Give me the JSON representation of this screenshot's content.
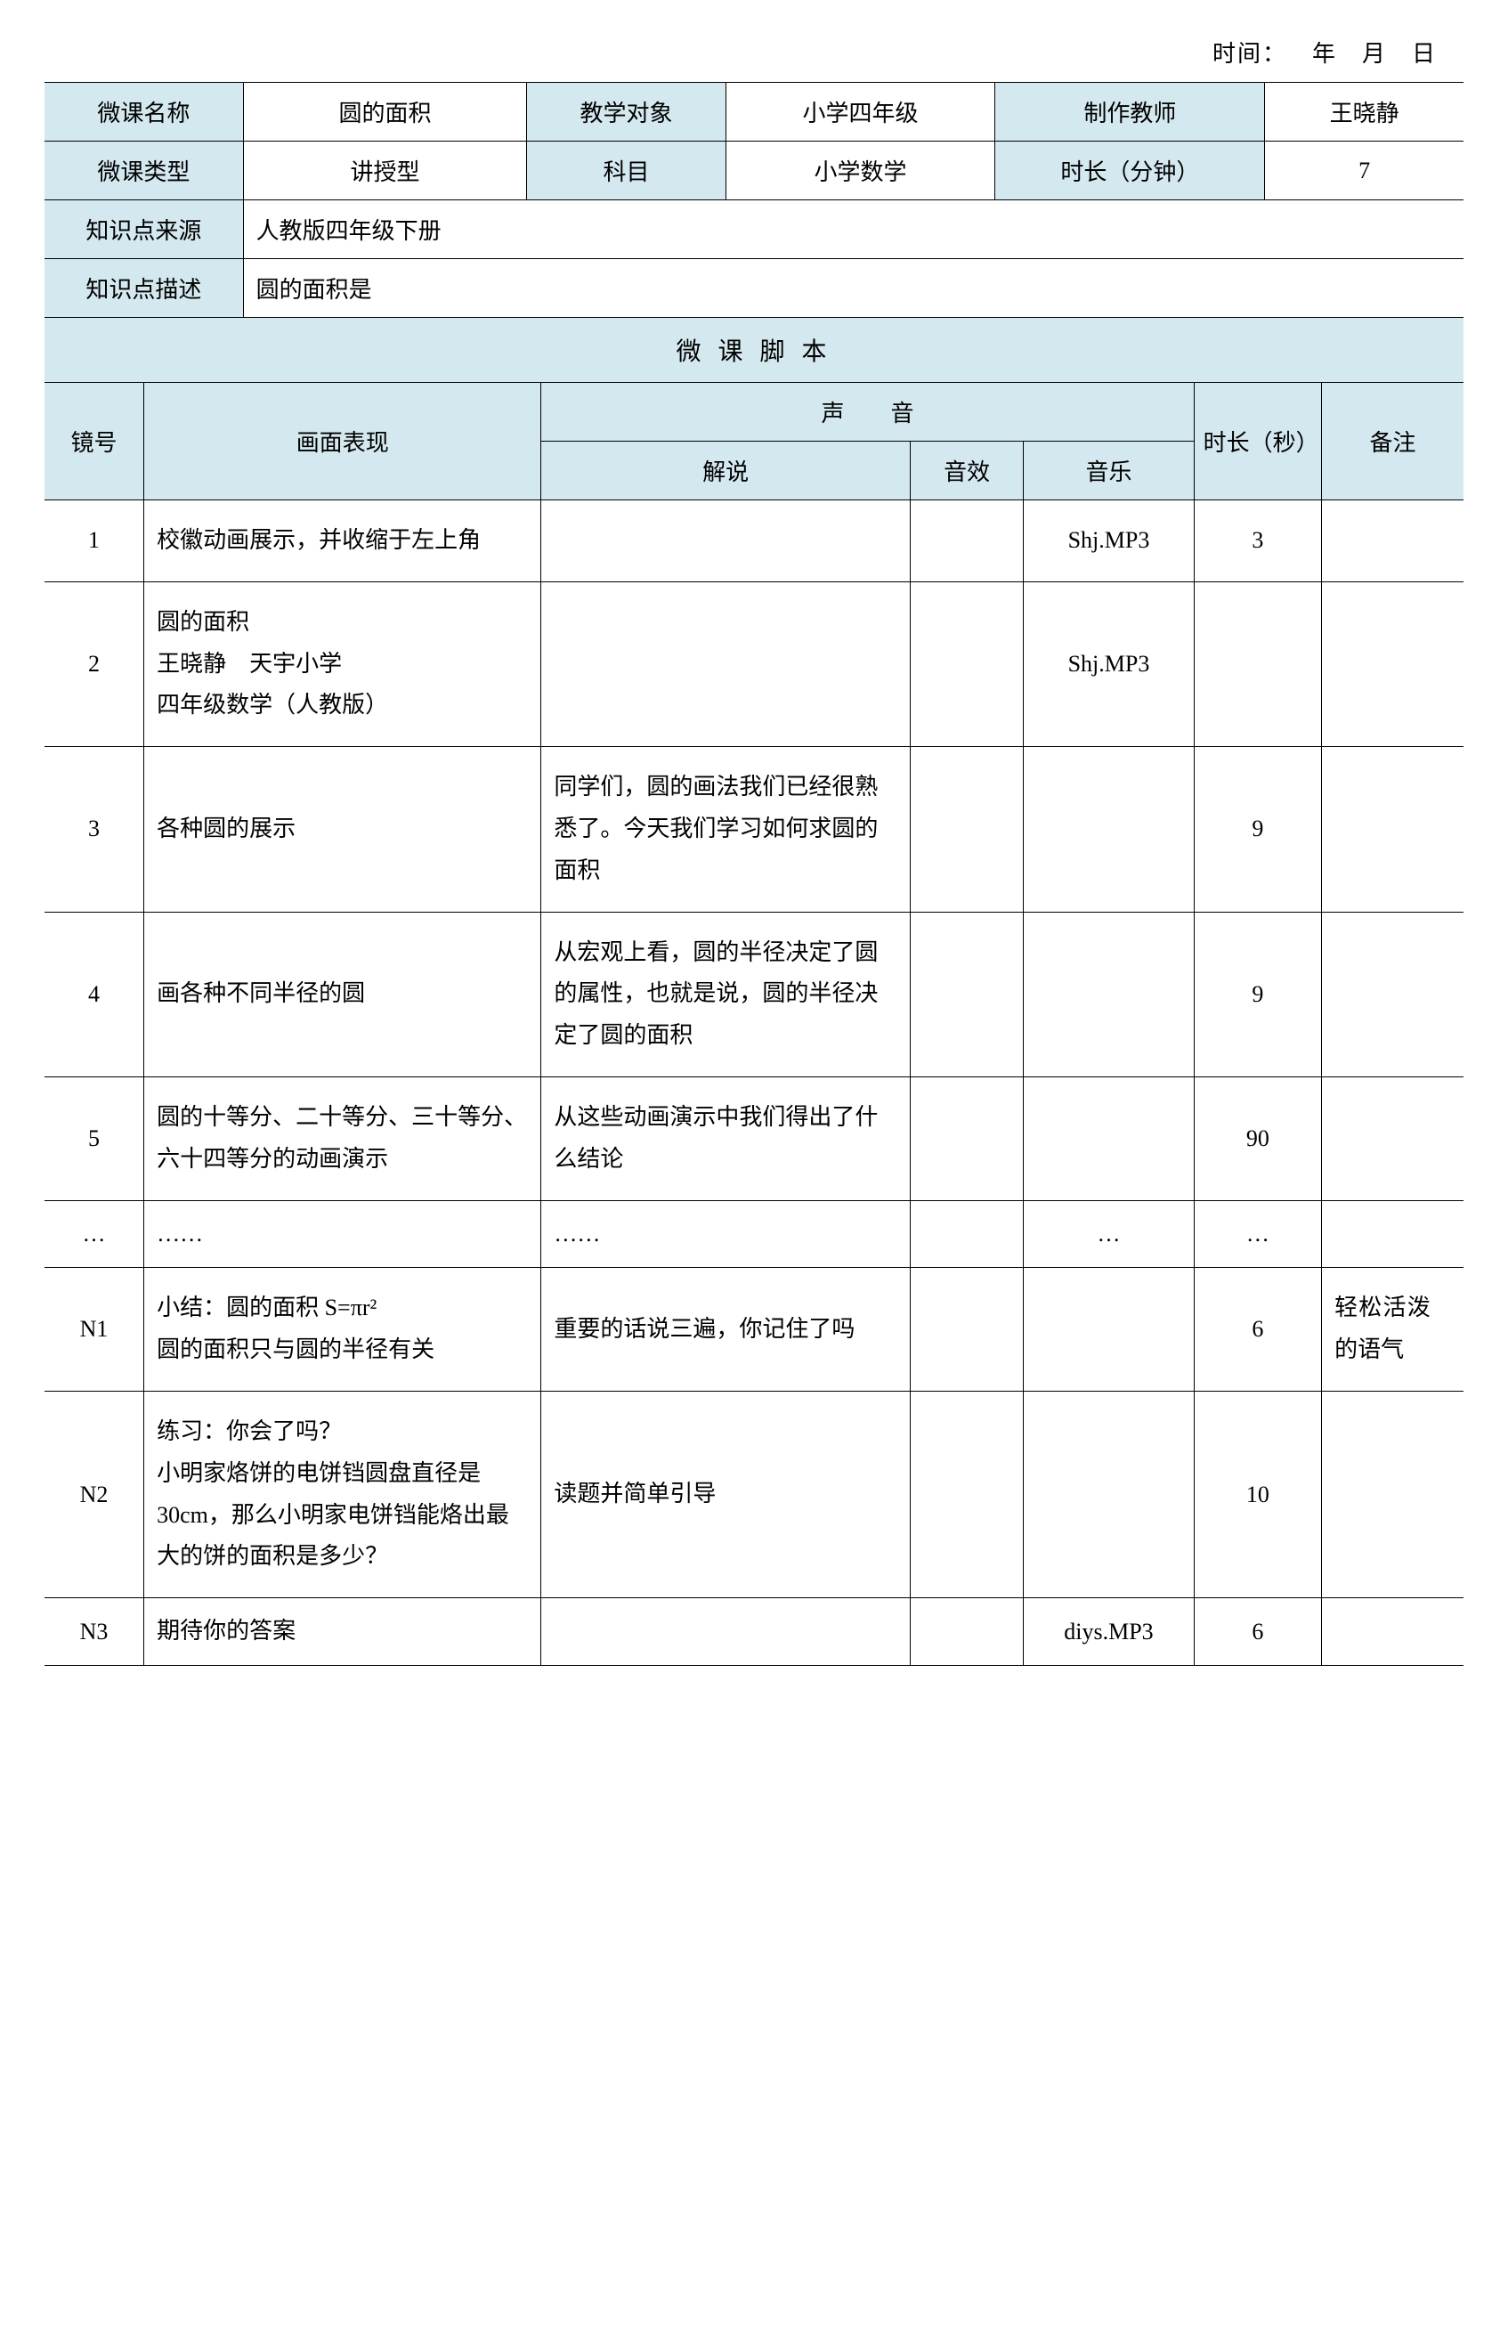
{
  "timeHeader": "时间： 年 月 日",
  "info": {
    "labels": {
      "courseName": "微课名称",
      "audience": "教学对象",
      "teacher": "制作教师",
      "courseType": "微课类型",
      "subject": "科目",
      "duration": "时长（分钟）",
      "source": "知识点来源",
      "description": "知识点描述"
    },
    "values": {
      "courseName": "圆的面积",
      "audience": "小学四年级",
      "teacher": "王晓静",
      "courseType": "讲授型",
      "subject": "小学数学",
      "duration": "7",
      "source": "人教版四年级下册",
      "description": "圆的面积是"
    }
  },
  "scriptTitle": "微 课 脚 本",
  "scriptHeaders": {
    "shot": "镜号",
    "visual": "画面表现",
    "sound": "声  音",
    "narration": "解说",
    "sfx": "音效",
    "music": "音乐",
    "durationSec": "时长（秒）",
    "notes": "备注"
  },
  "rows": {
    "r1": {
      "shot": "1",
      "visual": "校徽动画展示，并收缩于左上角",
      "narration": "",
      "sfx": "",
      "music": "Shj.MP3",
      "duration": "3",
      "notes": ""
    },
    "r2": {
      "shot": "2",
      "visual": "圆的面积\n王晓静 天宇小学\n四年级数学（人教版）",
      "narration": "",
      "sfx": "",
      "music": "Shj.MP3",
      "duration": "",
      "notes": ""
    },
    "r3": {
      "shot": "3",
      "visual": "各种圆的展示",
      "narration": "同学们，圆的画法我们已经很熟悉了。今天我们学习如何求圆的面积",
      "sfx": "",
      "music": "",
      "duration": "9",
      "notes": ""
    },
    "r4": {
      "shot": "4",
      "visual": "画各种不同半径的圆",
      "narration": "从宏观上看，圆的半径决定了圆的属性，也就是说，圆的半径决定了圆的面积",
      "sfx": "",
      "music": "",
      "duration": "9",
      "notes": ""
    },
    "r5": {
      "shot": "5",
      "visual": "圆的十等分、二十等分、三十等分、六十四等分的动画演示",
      "narration": "从这些动画演示中我们得出了什么结论",
      "sfx": "",
      "music": "",
      "duration": "90",
      "notes": ""
    },
    "rdots": {
      "shot": "…",
      "visual": "……",
      "narration": "……",
      "sfx": "",
      "music": "…",
      "duration": "…",
      "notes": ""
    },
    "rN1": {
      "shot": "N1",
      "visual": "小结：圆的面积 S=πr²\n圆的面积只与圆的半径有关",
      "narration": "重要的话说三遍，你记住了吗",
      "sfx": "",
      "music": "",
      "duration": "6",
      "notes": "轻松活泼 的语气"
    },
    "rN2": {
      "shot": "N2",
      "visual": "练习：你会了吗？\n小明家烙饼的电饼铛圆盘直径是 30cm，那么小明家电饼铛能烙出最大的饼的面积是多少？",
      "narration": "读题并简单引导",
      "sfx": "",
      "music": "",
      "duration": "10",
      "notes": ""
    },
    "rN3": {
      "shot": "N3",
      "visual": "期待你的答案",
      "narration": "",
      "sfx": "",
      "music": "diys.MP3",
      "duration": "6",
      "notes": ""
    }
  },
  "styling": {
    "headerBgColor": "#d4e8ef",
    "borderColor": "#000000",
    "bgColor": "#ffffff",
    "fontSize": 26,
    "titleFontSize": 28,
    "fontFamily": "SimSun",
    "lineHeight": 1.8
  }
}
